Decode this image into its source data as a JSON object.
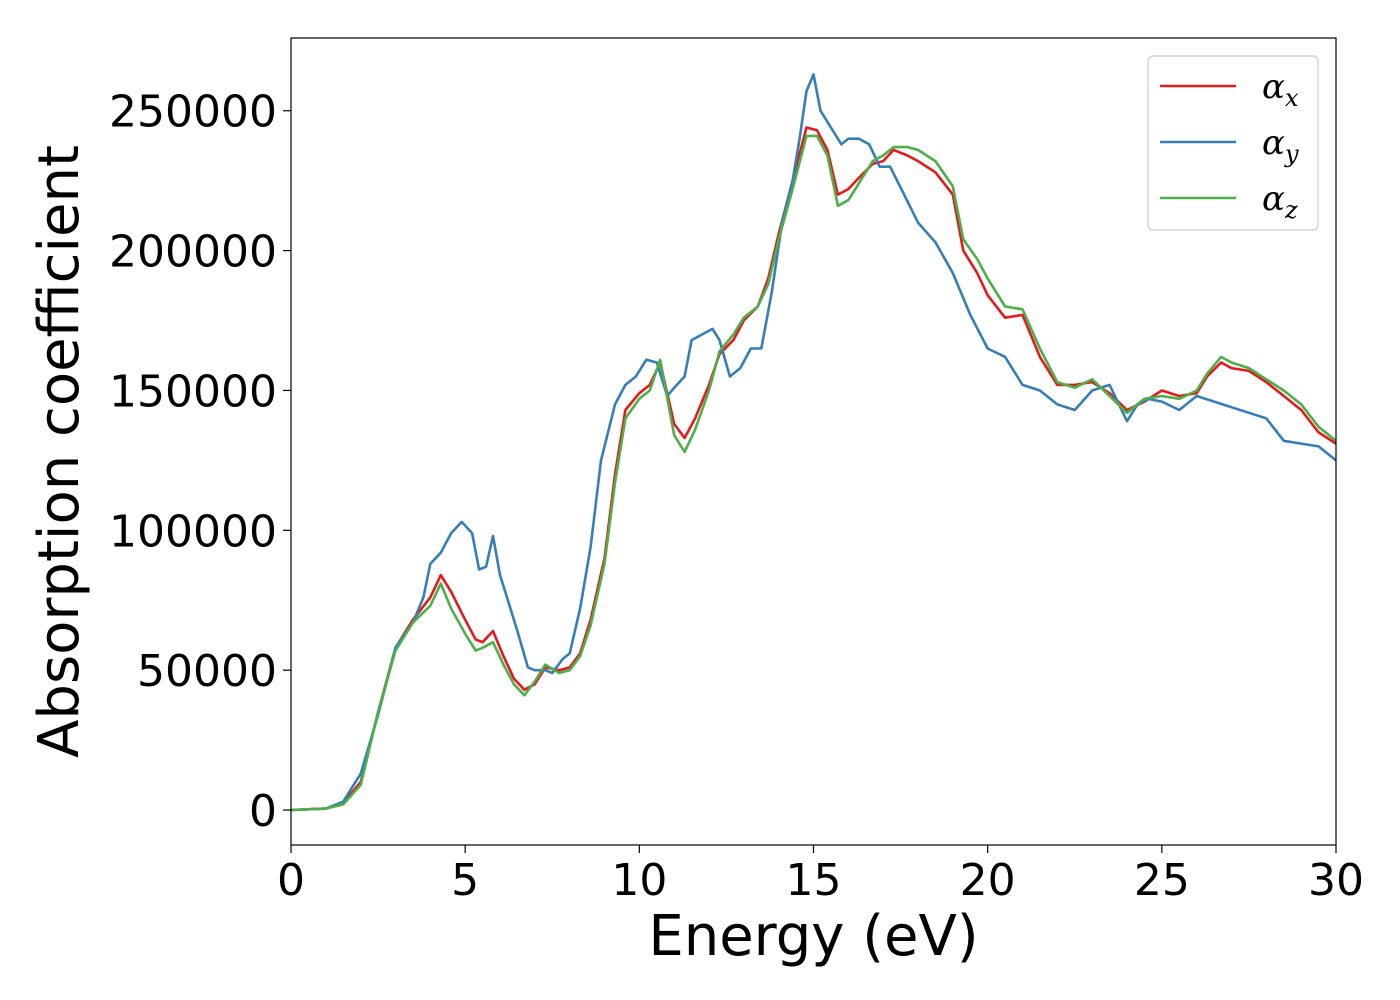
{
  "chart_data": {
    "type": "line",
    "title": "",
    "xlabel": "Energy (eV)",
    "ylabel": "Absorption coefficient",
    "xlim": [
      0,
      30
    ],
    "ylim": [
      -12500,
      276000
    ],
    "xticks": [
      0,
      5,
      10,
      15,
      20,
      25,
      30
    ],
    "xtick_labels": [
      "0",
      "5",
      "10",
      "15",
      "20",
      "25",
      "30"
    ],
    "yticks": [
      0,
      50000,
      100000,
      150000,
      200000,
      250000
    ],
    "ytick_labels": [
      "0",
      "50000",
      "100000",
      "150000",
      "200000",
      "250000"
    ],
    "grid": false,
    "legend_position": "top-right",
    "series": [
      {
        "name": "α",
        "subscript": "x",
        "color": "#e41a1c",
        "x": [
          0,
          1.0,
          1.5,
          2.0,
          2.5,
          3.0,
          3.5,
          4.0,
          4.3,
          4.6,
          5.0,
          5.3,
          5.5,
          5.8,
          6.1,
          6.4,
          6.7,
          7.0,
          7.3,
          7.7,
          8.0,
          8.3,
          8.6,
          9.0,
          9.3,
          9.6,
          10.0,
          10.3,
          10.6,
          11.0,
          11.3,
          11.6,
          12.0,
          12.3,
          12.7,
          13.0,
          13.4,
          13.7,
          14.0,
          14.4,
          14.8,
          15.1,
          15.4,
          15.7,
          16.0,
          16.3,
          16.7,
          17.0,
          17.3,
          17.7,
          18.0,
          18.5,
          19.0,
          19.3,
          19.7,
          20.0,
          20.5,
          21.0,
          21.5,
          22.0,
          22.5,
          23.0,
          23.5,
          24.0,
          24.5,
          25.0,
          25.5,
          26.0,
          26.3,
          26.7,
          27.0,
          27.5,
          28.0,
          28.5,
          29.0,
          29.5,
          30.0
        ],
        "values": [
          0,
          500,
          2500,
          10000,
          35000,
          58000,
          68000,
          76000,
          84000,
          78000,
          68000,
          61000,
          60000,
          64000,
          55000,
          47000,
          43000,
          45000,
          51000,
          50000,
          51000,
          56000,
          68000,
          90000,
          120000,
          143000,
          149000,
          152000,
          160000,
          138000,
          133000,
          140000,
          152000,
          163000,
          168000,
          175000,
          180000,
          190000,
          206000,
          225000,
          244000,
          243000,
          236000,
          220000,
          222000,
          226000,
          231000,
          232000,
          236000,
          234000,
          232000,
          228000,
          220000,
          200000,
          192000,
          184000,
          176000,
          177000,
          162000,
          152000,
          152000,
          153000,
          149000,
          143000,
          146000,
          150000,
          148000,
          149000,
          155000,
          160000,
          158000,
          157000,
          153000,
          148000,
          143000,
          135000,
          131000
        ]
      },
      {
        "name": "α",
        "subscript": "y",
        "color": "#377eb8",
        "x": [
          0,
          1.0,
          1.5,
          2.0,
          2.5,
          3.0,
          3.5,
          3.8,
          4.0,
          4.3,
          4.6,
          4.9,
          5.2,
          5.4,
          5.6,
          5.8,
          6.0,
          6.2,
          6.5,
          6.8,
          7.0,
          7.3,
          7.5,
          7.8,
          8.0,
          8.3,
          8.6,
          8.9,
          9.3,
          9.6,
          9.9,
          10.2,
          10.5,
          10.8,
          11.0,
          11.3,
          11.5,
          11.8,
          12.1,
          12.3,
          12.6,
          12.9,
          13.2,
          13.5,
          13.8,
          14.1,
          14.4,
          14.6,
          14.8,
          15.0,
          15.2,
          15.5,
          15.8,
          16.0,
          16.3,
          16.6,
          16.9,
          17.2,
          17.6,
          18.0,
          18.5,
          19.0,
          19.5,
          20.0,
          20.5,
          21.0,
          21.5,
          22.0,
          22.5,
          23.0,
          23.5,
          24.0,
          24.3,
          24.6,
          25.0,
          25.5,
          26.0,
          26.5,
          27.0,
          27.5,
          28.0,
          28.5,
          29.0,
          29.5,
          30.0
        ],
        "values": [
          0,
          500,
          3000,
          13000,
          34000,
          58000,
          67000,
          76000,
          88000,
          92000,
          99000,
          103000,
          99000,
          86000,
          87000,
          98000,
          84000,
          76000,
          64000,
          51000,
          50000,
          50000,
          49000,
          54000,
          56000,
          72000,
          94000,
          125000,
          145000,
          152000,
          155000,
          161000,
          160000,
          148000,
          151000,
          155000,
          168000,
          170000,
          172000,
          168000,
          155000,
          158000,
          165000,
          165000,
          185000,
          210000,
          225000,
          240000,
          257000,
          263000,
          250000,
          244000,
          238000,
          240000,
          240000,
          238000,
          230000,
          230000,
          220000,
          210000,
          203000,
          192000,
          177000,
          165000,
          162000,
          152000,
          150000,
          145000,
          143000,
          150000,
          152000,
          139000,
          145000,
          147000,
          146000,
          143000,
          148000,
          146000,
          144000,
          142000,
          140000,
          132000,
          131000,
          130000,
          125000
        ]
      },
      {
        "name": "α",
        "subscript": "z",
        "color": "#4daf4a",
        "x": [
          0,
          1.0,
          1.5,
          2.0,
          2.5,
          3.0,
          3.5,
          4.0,
          4.3,
          4.6,
          5.0,
          5.3,
          5.5,
          5.8,
          6.1,
          6.4,
          6.7,
          7.0,
          7.3,
          7.7,
          8.0,
          8.3,
          8.6,
          9.0,
          9.3,
          9.6,
          10.0,
          10.3,
          10.6,
          11.0,
          11.3,
          11.6,
          12.0,
          12.3,
          12.7,
          13.0,
          13.4,
          13.7,
          14.0,
          14.4,
          14.8,
          15.1,
          15.4,
          15.7,
          16.0,
          16.3,
          16.7,
          17.0,
          17.3,
          17.7,
          18.0,
          18.5,
          19.0,
          19.3,
          19.7,
          20.0,
          20.5,
          21.0,
          21.5,
          22.0,
          22.5,
          23.0,
          23.5,
          24.0,
          24.5,
          25.0,
          25.5,
          26.0,
          26.3,
          26.7,
          27.0,
          27.5,
          28.0,
          28.5,
          29.0,
          29.5,
          30.0
        ],
        "values": [
          0,
          500,
          2000,
          9000,
          35000,
          57000,
          67000,
          73000,
          81000,
          72000,
          63000,
          57000,
          58000,
          60000,
          52000,
          45000,
          41000,
          46000,
          52000,
          49000,
          50000,
          55000,
          66000,
          88000,
          117000,
          140000,
          147000,
          150000,
          161000,
          134000,
          128000,
          136000,
          150000,
          164000,
          170000,
          176000,
          180000,
          188000,
          204000,
          222000,
          241000,
          241000,
          234000,
          216000,
          218000,
          224000,
          232000,
          234000,
          237000,
          237000,
          236000,
          232000,
          223000,
          204000,
          197000,
          190000,
          180000,
          179000,
          165000,
          153000,
          151000,
          154000,
          148000,
          142000,
          147000,
          148000,
          147000,
          150000,
          156000,
          162000,
          160000,
          158000,
          154000,
          150000,
          145000,
          137000,
          132000
        ]
      }
    ]
  }
}
